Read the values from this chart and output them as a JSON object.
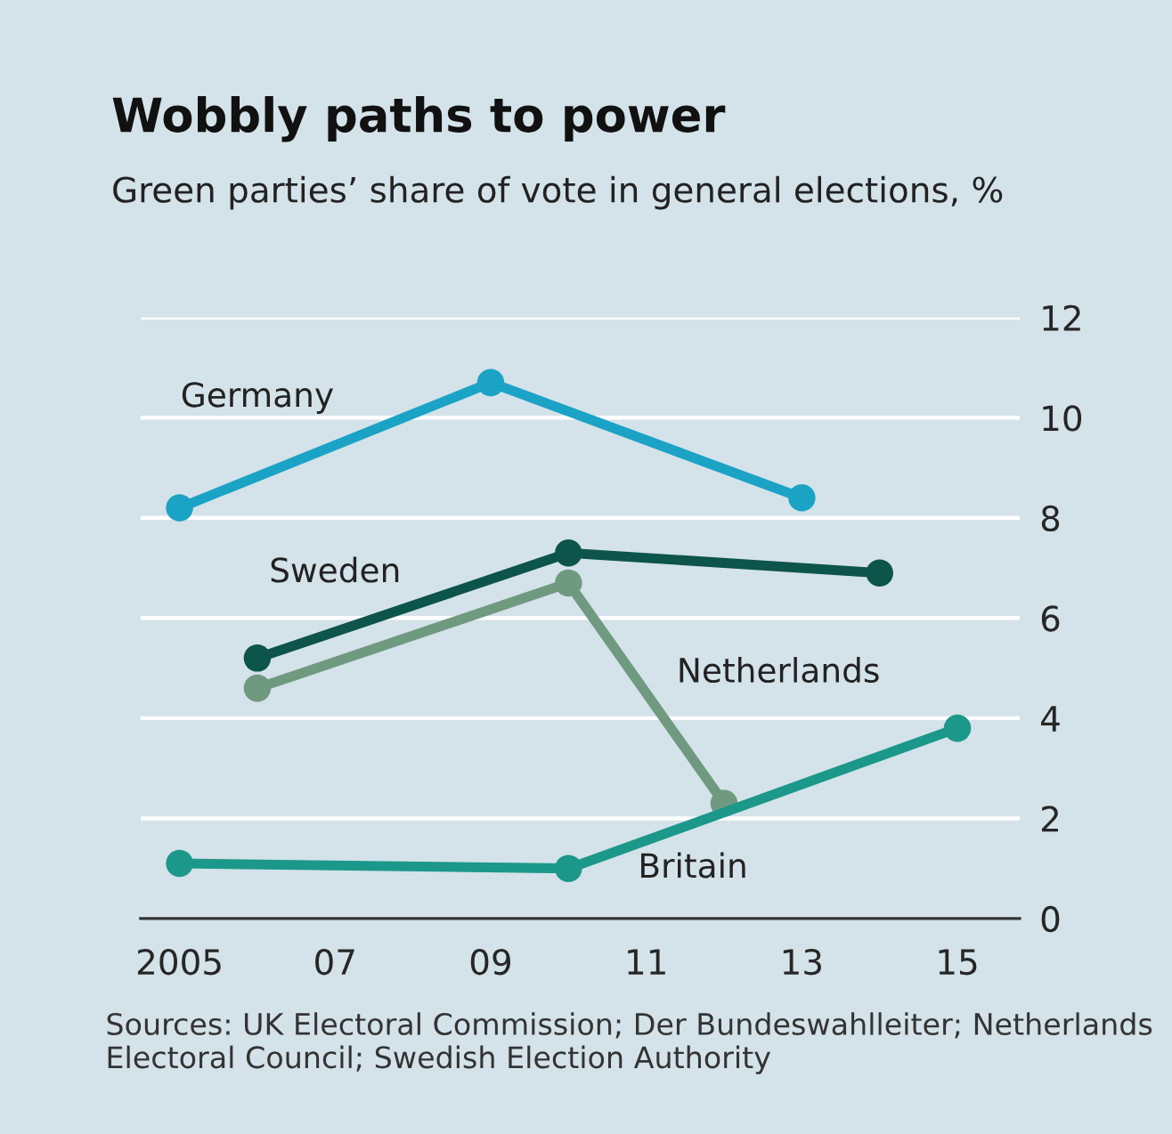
{
  "chart_data": {
    "type": "line",
    "title": "Wobbly paths to power",
    "subtitle": "Green parties’ share of vote in general elections, %",
    "series": [
      {
        "name": "Germany",
        "color": "#1ba3c6",
        "x": [
          2005,
          2009,
          2013
        ],
        "values": [
          8.2,
          10.7,
          8.4
        ]
      },
      {
        "name": "Sweden",
        "color": "#0d544b",
        "x": [
          2006,
          2010,
          2014
        ],
        "values": [
          5.2,
          7.3,
          6.9
        ]
      },
      {
        "name": "Netherlands",
        "color": "#6f9a80",
        "x": [
          2006,
          2010,
          2012
        ],
        "values": [
          4.6,
          6.7,
          2.3
        ]
      },
      {
        "name": "Britain",
        "color": "#1b9889",
        "x": [
          2005,
          2010,
          2015
        ],
        "values": [
          1.1,
          1.0,
          3.8
        ]
      }
    ],
    "xlim": [
      2004.5,
      2015.8
    ],
    "xticks": [
      {
        "value": 2005,
        "label": "2005"
      },
      {
        "value": 2007,
        "label": "07"
      },
      {
        "value": 2009,
        "label": "09"
      },
      {
        "value": 2011,
        "label": "11"
      },
      {
        "value": 2013,
        "label": "13"
      },
      {
        "value": 2015,
        "label": "15"
      }
    ],
    "ylim": [
      0,
      12
    ],
    "yticks": [
      0,
      2,
      4,
      6,
      8,
      10,
      12
    ],
    "grid": "y",
    "marker": "circle",
    "line_style": "solid",
    "annotations": [
      "Sources: UK Electoral Commission; Der Bundeswahlleiter; Netherlands Electoral Council; Swedish Election Authority"
    ]
  }
}
